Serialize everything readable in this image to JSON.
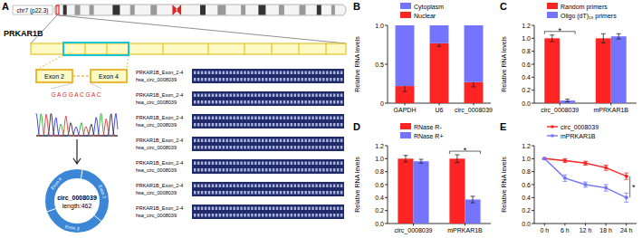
{
  "diagram": {
    "title": "A",
    "chromosome": "chr7 (p22.3)",
    "gene": "PRKAR1B",
    "exons": [
      "Exon 2",
      "Exon 4"
    ],
    "sequence": "G A G G A C G A C",
    "circle": {
      "name": "circ_0008039",
      "length_label": "length:462",
      "segments": [
        "Exon 2",
        "Exon 3",
        "Exon 4"
      ]
    },
    "alignment": [
      {
        "top": "PRKAR1B_Exon_2-4",
        "bottom": "hsa_circ_0008039"
      },
      {
        "top": "PRKAR1B_Exon_2-4",
        "bottom": "hsa_circ_0008039"
      },
      {
        "top": "PRKAR1B_Exon_2-4",
        "bottom": "hsa_circ_0008039"
      },
      {
        "top": "PRKAR1B_Exon_2-4",
        "bottom": "hsa_circ_0008039"
      },
      {
        "top": "PRKAR1B_Exon_2-4",
        "bottom": "hsa_circ_0008039"
      },
      {
        "top": "PRKAR1B_Exon_2-4",
        "bottom": "hsa_circ_0008039"
      },
      {
        "top": "PRKAR1B_Exon_2-4",
        "bottom": "hsa_circ_0008039"
      }
    ]
  },
  "chart_data": [
    {
      "title": "B",
      "type": "bar",
      "stacked": true,
      "legend": "top",
      "categories": [
        "GAPDH",
        "U6",
        "circ_0008039"
      ],
      "series": [
        {
          "name": "Nuclear",
          "color": "#ff2424",
          "values": [
            0.22,
            0.77,
            0.27
          ],
          "errors": [
            0.07,
            0.04,
            0.06
          ]
        },
        {
          "name": "Cytoplasm",
          "color": "#7474ff",
          "values": [
            0.78,
            0.23,
            0.73
          ]
        }
      ],
      "y_label": "Relative RNA levels",
      "ylim": [
        0,
        1
      ],
      "yticks": [
        0,
        0.5,
        {
          "value": 1,
          "label": "1.0"
        }
      ]
    },
    {
      "title": "C",
      "type": "bar",
      "legend": "top",
      "categories": [
        "circ_0008039",
        "mPRKAR1B"
      ],
      "series": [
        {
          "name": "Random primers",
          "color": "#ff2424",
          "values": [
            1.0,
            1.0
          ],
          "errors": [
            0.05,
            0.07
          ]
        },
        {
          "name": "Oligo (dT)₁₈ primers",
          "color": "#7474ff",
          "values": [
            0.04,
            1.03
          ],
          "errors": [
            0.02,
            0.04
          ]
        }
      ],
      "y_label": "Relative RNA levels",
      "ylim": [
        0,
        1.2
      ],
      "yticks": [
        {
          "value": 0,
          "label": "0.0"
        },
        0.2,
        0.4,
        0.6,
        0.8,
        {
          "value": 1,
          "label": "1.0"
        },
        1.2
      ],
      "annotations": [
        {
          "text": "*",
          "x": "circ_0008039"
        }
      ]
    },
    {
      "title": "D",
      "type": "bar",
      "legend": "top",
      "categories": [
        "circ_0008039",
        "mPRKAR1B"
      ],
      "series": [
        {
          "name": "RNase R-",
          "color": "#ff2424",
          "values": [
            1.0,
            1.0
          ],
          "errors": [
            0.05,
            0.06
          ]
        },
        {
          "name": "RNase R+",
          "color": "#7474ff",
          "values": [
            0.96,
            0.37
          ],
          "errors": [
            0.03,
            0.05
          ]
        }
      ],
      "y_label": "Relative RNA levels",
      "ylim": [
        0,
        1.2
      ],
      "yticks": [
        {
          "value": 0,
          "label": "0.0"
        },
        0.2,
        0.4,
        0.6,
        0.8,
        {
          "value": 1,
          "label": "1.0"
        },
        1.2
      ],
      "annotations": [
        {
          "text": "*",
          "x": "mPRKAR1B"
        }
      ]
    },
    {
      "title": "E",
      "type": "line",
      "legend": "top",
      "marker": "circle",
      "categories": [
        "0 h",
        "6 h",
        "12 h",
        "18 h",
        "24 h"
      ],
      "series": [
        {
          "name": "circ_0008039",
          "color": "#ff2424",
          "values": [
            1.0,
            0.97,
            0.93,
            0.86,
            0.73
          ],
          "errors": [
            0.01,
            0.03,
            0.03,
            0.04,
            0.05
          ]
        },
        {
          "name": "mPRKAR1B",
          "color": "#7474ff",
          "values": [
            1.0,
            0.7,
            0.6,
            0.55,
            0.4
          ],
          "errors": [
            0.01,
            0.05,
            0.04,
            0.05,
            0.07
          ]
        }
      ],
      "y_label": "Relative RNA levels",
      "ylim": [
        0,
        1.2
      ],
      "yticks": [
        {
          "value": 0,
          "label": "0.0"
        },
        0.2,
        0.4,
        0.6,
        0.8,
        {
          "value": 1,
          "label": "1.0"
        },
        1.2
      ],
      "annotations": [
        {
          "text": "*",
          "x": "24 h"
        }
      ]
    }
  ]
}
